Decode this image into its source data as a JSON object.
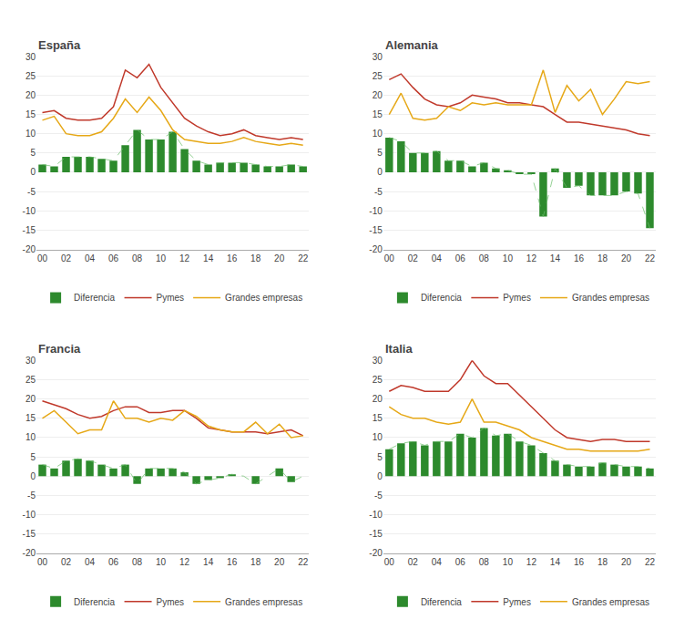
{
  "chart_data": [
    {
      "type": "bar",
      "title": "España",
      "categories": [
        "00",
        null,
        "02",
        null,
        "04",
        null,
        "06",
        null,
        "08",
        null,
        "10",
        null,
        "12",
        null,
        "14",
        null,
        "16",
        null,
        "18",
        null,
        "20",
        null,
        "22"
      ],
      "series": [
        {
          "name": "Diferencia",
          "type": "bar",
          "color": "#2d8a2d",
          "values": [
            2.0,
            1.5,
            4.0,
            4.0,
            4.0,
            3.5,
            3.0,
            7.0,
            11.0,
            8.5,
            8.5,
            10.5,
            6.0,
            3.0,
            2.0,
            2.5,
            2.5,
            2.5,
            2.0,
            1.5,
            1.5,
            2.0,
            1.5
          ]
        },
        {
          "name": "Pymes",
          "type": "line",
          "color": "#c0392b",
          "line_style": "solid",
          "values": [
            15.5,
            16.0,
            14.0,
            13.5,
            13.5,
            14.0,
            17.0,
            26.5,
            24.5,
            28.0,
            22.0,
            18.0,
            14.0,
            12.0,
            10.5,
            9.5,
            10.0,
            11.0,
            9.5,
            9.0,
            8.5,
            9.0,
            8.5
          ]
        },
        {
          "name": "Grandes empresas",
          "type": "line",
          "color": "#e6a817",
          "line_style": "solid",
          "values": [
            13.5,
            14.5,
            10.0,
            9.5,
            9.5,
            10.5,
            14.0,
            19.0,
            15.5,
            19.5,
            16.0,
            11.0,
            8.5,
            8.0,
            7.5,
            7.5,
            8.0,
            9.0,
            8.0,
            7.5,
            7.0,
            7.5,
            7.0
          ]
        },
        {
          "type": "line",
          "color": "#6abf6a",
          "line_style": "dashed",
          "values": [
            2.0,
            1.5,
            4.0,
            4.0,
            4.0,
            3.5,
            3.0,
            7.0,
            11.0,
            8.5,
            8.5,
            10.5,
            6.0,
            3.0,
            2.0,
            2.5,
            2.5,
            2.5,
            2.0,
            1.5,
            1.5,
            2.0,
            1.5
          ]
        }
      ],
      "ylim": [
        -20,
        30
      ],
      "yticks": [
        -20,
        -15,
        -10,
        -5,
        0,
        5,
        10,
        15,
        20,
        25,
        30
      ],
      "grid": true,
      "legend": "bottom"
    },
    {
      "type": "bar",
      "title": "Alemania",
      "categories": [
        "00",
        null,
        "02",
        null,
        "04",
        null,
        "06",
        null,
        "08",
        null,
        "10",
        null,
        "12",
        null,
        "14",
        null,
        "16",
        null,
        "18",
        null,
        "20",
        null,
        "22"
      ],
      "series": [
        {
          "name": "Diferencia",
          "type": "bar",
          "color": "#2d8a2d",
          "values": [
            9.0,
            8.0,
            5.0,
            5.0,
            5.5,
            3.0,
            3.0,
            1.5,
            2.5,
            1.0,
            0.5,
            -0.5,
            -0.5,
            -11.5,
            1.0,
            -4.0,
            -3.5,
            -6.0,
            -6.0,
            -6.0,
            -5.0,
            -5.5,
            -14.5
          ]
        },
        {
          "name": "Pymes",
          "type": "line",
          "color": "#c0392b",
          "line_style": "solid",
          "values": [
            24.0,
            25.5,
            22.0,
            19.0,
            17.5,
            17.0,
            18.0,
            20.0,
            19.5,
            19.0,
            18.0,
            18.0,
            17.5,
            17.0,
            15.0,
            13.0,
            13.0,
            12.5,
            12.0,
            11.5,
            11.0,
            10.0,
            9.5
          ]
        },
        {
          "name": "Grandes empresas",
          "type": "line",
          "color": "#e6a817",
          "line_style": "solid",
          "values": [
            15.0,
            20.5,
            14.0,
            13.5,
            14.0,
            17.0,
            16.0,
            18.0,
            17.5,
            18.0,
            17.5,
            17.5,
            17.5,
            26.5,
            15.5,
            22.5,
            18.5,
            21.5,
            15.0,
            19.0,
            23.5,
            23.0,
            23.5
          ]
        },
        {
          "type": "line",
          "color": "#6abf6a",
          "line_style": "dashed",
          "values": [
            9.0,
            8.0,
            5.0,
            5.0,
            5.5,
            3.0,
            3.0,
            1.5,
            2.5,
            1.0,
            0.5,
            -0.5,
            -0.5,
            -11.5,
            1.0,
            -4.0,
            -3.5,
            -6.0,
            -6.0,
            -6.0,
            -5.0,
            -5.5,
            -14.5
          ]
        }
      ],
      "ylim": [
        -20,
        30
      ],
      "yticks": [
        -20,
        -15,
        -10,
        -5,
        0,
        5,
        10,
        15,
        20,
        25,
        30
      ],
      "grid": true,
      "legend": "bottom"
    },
    {
      "type": "bar",
      "title": "Francia",
      "categories": [
        "00",
        null,
        "02",
        null,
        "04",
        null,
        "06",
        null,
        "08",
        null,
        "10",
        null,
        "12",
        null,
        "14",
        null,
        "16",
        null,
        "18",
        null,
        "20",
        null,
        "22"
      ],
      "series": [
        {
          "name": "Diferencia",
          "type": "bar",
          "color": "#2d8a2d",
          "values": [
            3.0,
            2.0,
            4.0,
            4.5,
            4.0,
            3.0,
            2.0,
            3.0,
            -2.0,
            2.0,
            2.0,
            2.0,
            1.0,
            -2.0,
            -1.0,
            -0.5,
            0.5,
            0.0,
            -2.0,
            0.0,
            2.0,
            -1.5,
            0.0
          ]
        },
        {
          "name": "Pymes",
          "type": "line",
          "color": "#c0392b",
          "line_style": "solid",
          "values": [
            19.5,
            18.5,
            17.5,
            16.0,
            15.0,
            15.5,
            17.0,
            18.0,
            18.0,
            16.5,
            16.5,
            17.0,
            17.0,
            15.0,
            12.5,
            12.0,
            11.5,
            11.5,
            11.5,
            11.0,
            11.5,
            12.0,
            10.5
          ]
        },
        {
          "name": "Grandes empresas",
          "type": "line",
          "color": "#e6a817",
          "line_style": "solid",
          "values": [
            15.0,
            17.0,
            14.0,
            11.0,
            12.0,
            12.0,
            19.5,
            15.0,
            15.0,
            14.0,
            15.0,
            14.5,
            17.0,
            15.5,
            13.0,
            12.0,
            11.5,
            11.5,
            14.0,
            11.0,
            13.5,
            10.0,
            10.5
          ]
        },
        {
          "type": "line",
          "color": "#6abf6a",
          "line_style": "dashed",
          "values": [
            3.0,
            2.0,
            4.0,
            4.5,
            4.0,
            3.0,
            2.0,
            3.0,
            -2.0,
            2.0,
            2.0,
            2.0,
            1.0,
            -2.0,
            -1.0,
            -0.5,
            0.5,
            0.0,
            -2.0,
            0.0,
            2.0,
            -1.5,
            0.0
          ]
        }
      ],
      "ylim": [
        -20,
        30
      ],
      "yticks": [
        -20,
        -15,
        -10,
        -5,
        0,
        5,
        10,
        15,
        20,
        25,
        30
      ],
      "grid": true,
      "legend": "bottom"
    },
    {
      "type": "bar",
      "title": "Italia",
      "categories": [
        "00",
        null,
        "02",
        null,
        "04",
        null,
        "06",
        null,
        "08",
        null,
        "10",
        null,
        "12",
        null,
        "14",
        null,
        "16",
        null,
        "18",
        null,
        "20",
        null,
        "22"
      ],
      "series": [
        {
          "name": "Diferencia",
          "type": "bar",
          "color": "#2d8a2d",
          "values": [
            7.0,
            8.5,
            9.0,
            8.0,
            9.0,
            9.0,
            11.0,
            10.0,
            12.5,
            10.5,
            11.0,
            9.0,
            8.0,
            6.0,
            4.0,
            3.0,
            2.5,
            2.5,
            3.5,
            3.0,
            2.5,
            2.5,
            2.0
          ]
        },
        {
          "name": "Pymes",
          "type": "line",
          "color": "#c0392b",
          "line_style": "solid",
          "values": [
            22.0,
            23.5,
            23.0,
            22.0,
            22.0,
            22.0,
            25.0,
            30.0,
            26.0,
            24.0,
            24.0,
            21.0,
            18.0,
            15.0,
            12.0,
            10.0,
            9.5,
            9.0,
            9.5,
            9.5,
            9.0,
            9.0,
            9.0
          ]
        },
        {
          "name": "Grandes empresas",
          "type": "line",
          "color": "#e6a817",
          "line_style": "solid",
          "values": [
            18.0,
            16.0,
            15.0,
            15.0,
            14.0,
            13.5,
            14.0,
            20.0,
            14.0,
            14.0,
            13.0,
            12.0,
            10.0,
            9.0,
            8.0,
            7.0,
            7.0,
            6.5,
            6.5,
            6.5,
            6.5,
            6.5,
            7.0
          ]
        },
        {
          "type": "line",
          "color": "#6abf6a",
          "line_style": "dashed",
          "values": [
            7.0,
            8.5,
            9.0,
            8.0,
            9.0,
            9.0,
            11.0,
            10.0,
            12.5,
            10.5,
            11.0,
            9.0,
            8.0,
            6.0,
            4.0,
            3.0,
            2.5,
            2.5,
            3.5,
            3.0,
            2.5,
            2.5,
            2.0
          ]
        }
      ],
      "ylim": [
        -20,
        30
      ],
      "yticks": [
        -20,
        -15,
        -10,
        -5,
        0,
        5,
        10,
        15,
        20,
        25,
        30
      ],
      "grid": true,
      "legend": "bottom"
    }
  ]
}
